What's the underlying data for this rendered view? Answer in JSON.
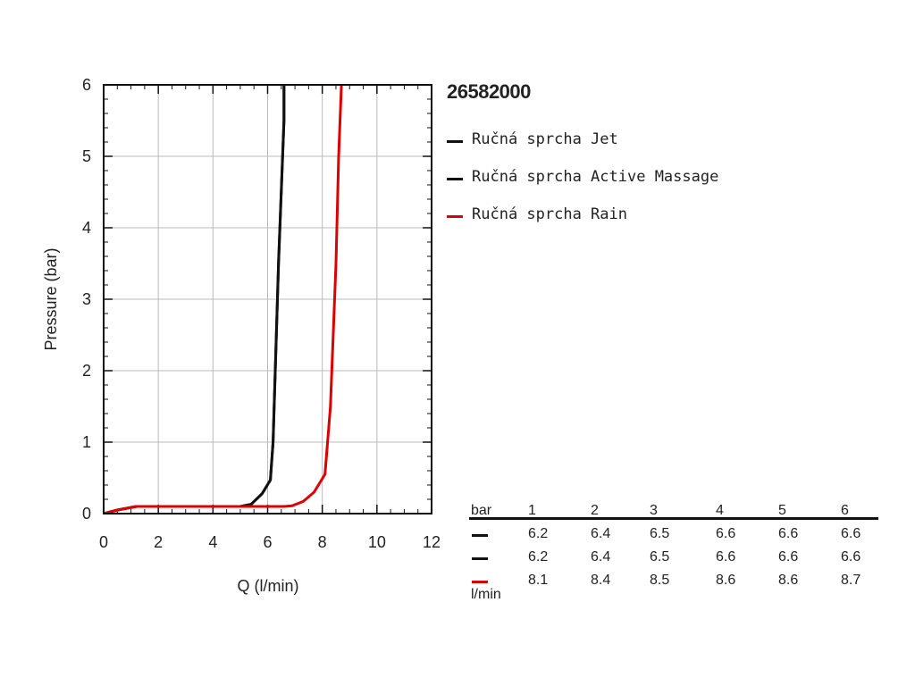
{
  "chart_data": {
    "type": "line",
    "title": "26582000",
    "xlabel": "Q (l/min)",
    "ylabel": "Pressure (bar)",
    "xlim": [
      0,
      12
    ],
    "ylim": [
      0,
      6
    ],
    "xticks": [
      "0",
      "2",
      "4",
      "6",
      "8",
      "10",
      "12"
    ],
    "yticks": [
      "0",
      "1",
      "2",
      "3",
      "4",
      "5",
      "6"
    ],
    "grid": true,
    "legend_position": "right",
    "series": [
      {
        "name": "Ručná sprcha Jet",
        "color": "#111111",
        "x": [
          0,
          0.5,
          1.2,
          5.0,
          5.4,
          5.8,
          6.1,
          6.2,
          6.4,
          6.6,
          6.6
        ],
        "y": [
          0,
          0.05,
          0.1,
          0.1,
          0.13,
          0.28,
          0.47,
          1.0,
          3.5,
          5.5,
          6.0
        ]
      },
      {
        "name": "Ručná sprcha Active Massage",
        "color": "#111111",
        "x": [
          0,
          0.5,
          1.2,
          5.0,
          5.4,
          5.8,
          6.1,
          6.2,
          6.4,
          6.6,
          6.6
        ],
        "y": [
          0,
          0.05,
          0.1,
          0.1,
          0.13,
          0.28,
          0.47,
          1.0,
          3.5,
          5.5,
          6.0
        ]
      },
      {
        "name": "Ručná sprcha Rain",
        "color": "#dd0000",
        "x": [
          0,
          0.5,
          1.2,
          6.6,
          6.9,
          7.3,
          7.7,
          8.1,
          8.3,
          8.5,
          8.6,
          8.7
        ],
        "y": [
          0,
          0.05,
          0.1,
          0.1,
          0.11,
          0.17,
          0.3,
          0.55,
          1.5,
          3.5,
          5.0,
          6.0
        ]
      }
    ]
  },
  "table": {
    "header_unit": "bar",
    "pressures": [
      "1",
      "2",
      "3",
      "4",
      "5",
      "6"
    ],
    "unit": "l/min",
    "rows": [
      {
        "color": "#111111",
        "values": [
          "6.2",
          "6.4",
          "6.5",
          "6.6",
          "6.6",
          "6.6"
        ]
      },
      {
        "color": "#111111",
        "values": [
          "6.2",
          "6.4",
          "6.5",
          "6.6",
          "6.6",
          "6.6"
        ]
      },
      {
        "color": "#dd0000",
        "values": [
          "8.1",
          "8.4",
          "8.5",
          "8.6",
          "8.6",
          "8.7"
        ]
      }
    ]
  }
}
